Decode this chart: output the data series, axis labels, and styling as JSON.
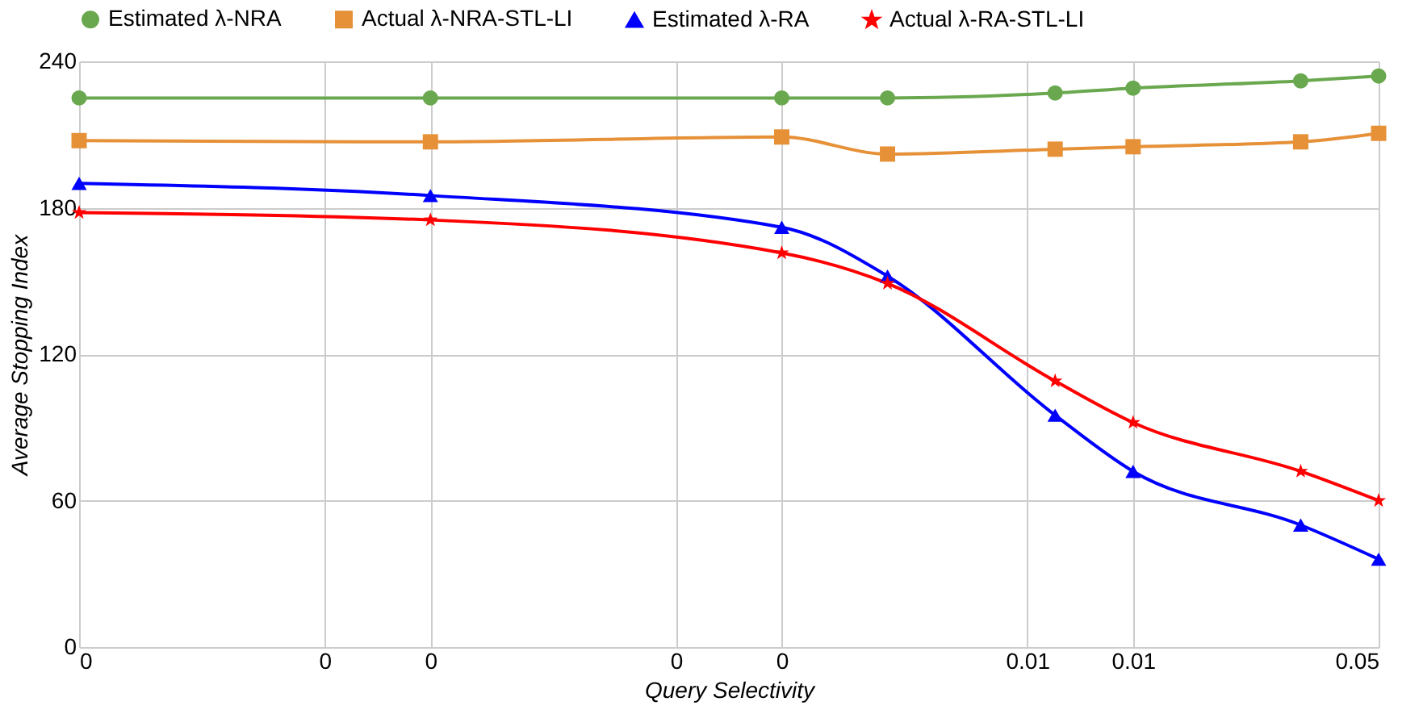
{
  "chart_data": {
    "type": "line",
    "xlabel": "Query Selectivity",
    "ylabel": "Average Stopping Index",
    "log": "x",
    "xlim": [
      1e-05,
      0.05
    ],
    "xticks": [
      {
        "value": 1e-05,
        "label": "0"
      },
      {
        "value": 5e-05,
        "label": "0"
      },
      {
        "value": 0.0001,
        "label": "0"
      },
      {
        "value": 0.0005,
        "label": "0"
      },
      {
        "value": 0.001,
        "label": "0"
      },
      {
        "value": 0.005,
        "label": "0.01"
      },
      {
        "value": 0.01,
        "label": "0.01"
      },
      {
        "value": 0.05,
        "label": "0.05"
      }
    ],
    "ylim": [
      0,
      240
    ],
    "yticks": [
      0,
      60,
      120,
      180,
      240
    ],
    "grid": true,
    "legend": "top",
    "x": [
      1e-05,
      0.0001,
      0.001,
      0.002,
      0.006,
      0.01,
      0.03,
      0.05
    ],
    "series": [
      {
        "name": "Estimated λ-NRA",
        "color": "#6aa84f",
        "marker": "circle",
        "values": [
          225,
          225,
          225,
          225,
          227,
          229,
          232,
          234
        ]
      },
      {
        "name": "Actual λ-NRA-STL-LI",
        "color": "#e69138",
        "marker": "square",
        "values": [
          207.5,
          207,
          209,
          202,
          204,
          205,
          207,
          210.5
        ]
      },
      {
        "name": "Estimated λ-RA",
        "color": "#0000ff",
        "marker": "triangle",
        "values": [
          190,
          185,
          172,
          152,
          95,
          72,
          50,
          36
        ]
      },
      {
        "name": "Actual λ-RA-STL-LI",
        "color": "#ff0000",
        "marker": "star",
        "values": [
          178,
          175,
          161.5,
          149,
          109,
          92,
          72,
          60
        ]
      }
    ]
  }
}
